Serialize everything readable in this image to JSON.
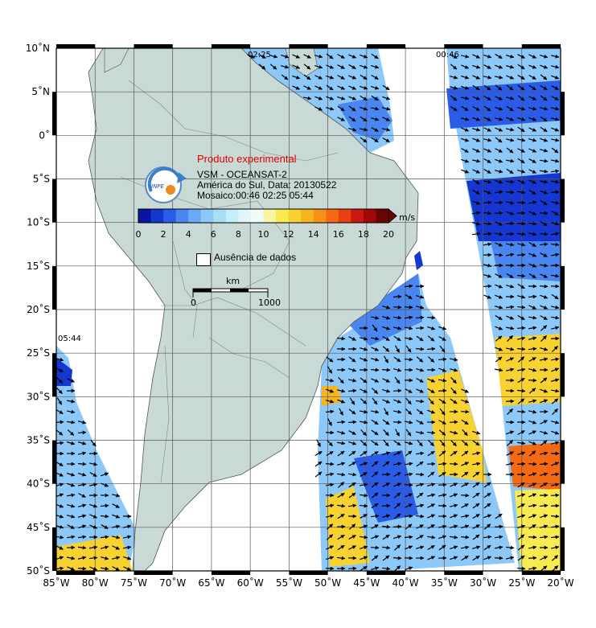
{
  "product": {
    "title": "Produto experimental",
    "line1": "VSM - OCEANSAT-2",
    "line2": "América do Sul, Data: 20130522",
    "line3": "Mosaico:00:46 02:25 05:44",
    "logo_text": "INPE"
  },
  "colorbar": {
    "unit": "m/s",
    "ticks": [
      "0",
      "2",
      "4",
      "6",
      "8",
      "10",
      "12",
      "14",
      "16",
      "18",
      "20"
    ],
    "colors": [
      "#0a14a0",
      "#1636d0",
      "#2a5ce8",
      "#4a86f0",
      "#6aaaf5",
      "#8cc8f8",
      "#a8def8",
      "#c6eefa",
      "#e0f6fb",
      "#f0fbfc",
      "#f8f6a0",
      "#f8ea50",
      "#f8d230",
      "#f8b420",
      "#f89018",
      "#f46a14",
      "#e84010",
      "#c81810",
      "#a00808",
      "#6a0404"
    ]
  },
  "legend": {
    "no_data": "Ausência de dados"
  },
  "scale": {
    "unit": "km",
    "start": "0",
    "end": "1000"
  },
  "swath_times": [
    "02:25",
    "00:46",
    "05:44"
  ],
  "axes": {
    "lat_labels": [
      "10˚N",
      "5˚N",
      "0˚",
      "5˚S",
      "10˚S",
      "15˚S",
      "20˚S",
      "25˚S",
      "30˚S",
      "35˚S",
      "40˚S",
      "45˚S",
      "50˚S"
    ],
    "lon_labels": [
      "85˚W",
      "80˚W",
      "75˚W",
      "70˚W",
      "65˚W",
      "60˚W",
      "55˚W",
      "50˚W",
      "45˚W",
      "40˚W",
      "35˚W",
      "30˚W",
      "25˚W",
      "20˚W"
    ]
  },
  "colors": {
    "land": "#c9dad6",
    "ocean": "#ffffff",
    "grid": "#666666"
  }
}
